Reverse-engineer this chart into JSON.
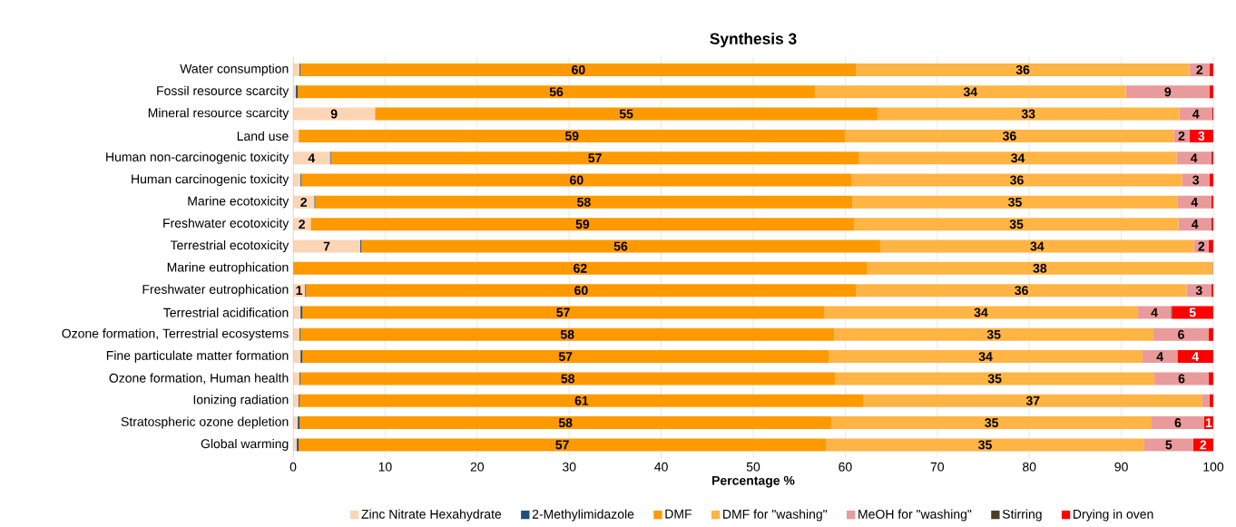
{
  "chart_data": {
    "type": "bar",
    "orientation": "horizontal",
    "stacked": true,
    "title": "Synthesis 3",
    "xlabel": "Percentage %",
    "categories": [
      "Water consumption",
      "Fossil resource scarcity",
      "Mineral resource scarcity",
      "Land use",
      "Human non-carcinogenic toxicity",
      "Human carcinogenic toxicity",
      "Marine ecotoxicity",
      "Freshwater ecotoxicity",
      "Terrestrial ecotoxicity",
      "Marine eutrophication",
      "Freshwater eutrophication",
      "Terrestrial acidification",
      "Ozone formation, Terrestrial ecosystems",
      "Fine particulate matter formation",
      "Ozone formation, Human health",
      "Ionizing radiation",
      "Stratospheric ozone depletion",
      "Global warming"
    ],
    "xlim": [
      0,
      100
    ],
    "xticks": [
      0,
      10,
      20,
      30,
      40,
      50,
      60,
      70,
      80,
      90,
      100
    ],
    "grid": "x",
    "legend": "bottom",
    "series": [
      {
        "name": "Zinc Nitrate Hexahydrate",
        "color": "#fcd5b5",
        "values": [
          0.7,
          0.3,
          8.9,
          0.6,
          4.0,
          0.8,
          2.3,
          1.9,
          7.3,
          0,
          1.3,
          0.8,
          0.7,
          0.8,
          0.7,
          0.6,
          0.5,
          0.4
        ],
        "value_labels": [
          null,
          null,
          "9",
          null,
          "4",
          null,
          "2",
          "2",
          "7",
          null,
          "1",
          null,
          null,
          null,
          null,
          null,
          null,
          null
        ]
      },
      {
        "name": "2-Methylimidazole",
        "color": "#1f4e79",
        "values": [
          0.1,
          0.2,
          0,
          0,
          0.1,
          0.1,
          0.1,
          0,
          0.1,
          0,
          0.1,
          0.2,
          0.1,
          0.2,
          0.1,
          0.1,
          0.2,
          0.2
        ]
      },
      {
        "name": "DMF",
        "color": "#ff9900",
        "values": [
          60.4,
          56.2,
          54.6,
          59.4,
          57.4,
          59.8,
          58.4,
          59.1,
          56.4,
          62.4,
          59.8,
          56.7,
          58.0,
          57.2,
          58.1,
          61.3,
          57.8,
          57.3
        ],
        "value_labels": [
          "60",
          "56",
          "55",
          "59",
          "57",
          "60",
          "58",
          "59",
          "56",
          "62",
          "60",
          "57",
          "58",
          "57",
          "58",
          "61",
          "58",
          "57"
        ]
      },
      {
        "name": "DMF for \"washing\"",
        "color": "#ffb443",
        "values": [
          36.2,
          33.8,
          32.8,
          35.7,
          34.5,
          35.9,
          35.3,
          35.2,
          34.1,
          37.5,
          35.9,
          34.1,
          34.7,
          34.1,
          34.7,
          36.8,
          34.8,
          34.6
        ],
        "value_labels": [
          "36",
          "34",
          "33",
          "36",
          "34",
          "36",
          "35",
          "35",
          "34",
          "38",
          "36",
          "34",
          "35",
          "34",
          "35",
          "37",
          "35",
          "35"
        ]
      },
      {
        "name": "MeOH for \"washing\"",
        "color": "#e99a9a",
        "values": [
          2.2,
          9.1,
          3.6,
          1.7,
          3.8,
          3.0,
          3.7,
          3.6,
          1.6,
          0.1,
          2.7,
          3.6,
          6.0,
          3.8,
          5.9,
          0.8,
          5.7,
          5.3
        ],
        "value_labels": [
          "2",
          "9",
          "4",
          "2",
          "4",
          "3",
          "4",
          "4",
          "2",
          null,
          "3",
          "4",
          "6",
          "4",
          "6",
          null,
          "6",
          "5"
        ]
      },
      {
        "name": "Stirring",
        "color": "#4a3f23",
        "values": [
          0,
          0,
          0,
          0,
          0,
          0,
          0,
          0,
          0,
          0,
          0,
          0.1,
          0,
          0,
          0,
          0,
          0,
          0
        ]
      },
      {
        "name": "Drying in oven",
        "color": "#ff0000",
        "values": [
          0.4,
          0.4,
          0.1,
          2.6,
          0.2,
          0.4,
          0.2,
          0.2,
          0.5,
          0,
          0.2,
          4.5,
          0.5,
          3.9,
          0.5,
          0.4,
          1.0,
          2.2
        ],
        "value_labels": [
          null,
          null,
          null,
          "3",
          null,
          null,
          null,
          null,
          null,
          null,
          null,
          "5",
          null,
          "4",
          null,
          null,
          "1",
          "2"
        ]
      }
    ]
  }
}
